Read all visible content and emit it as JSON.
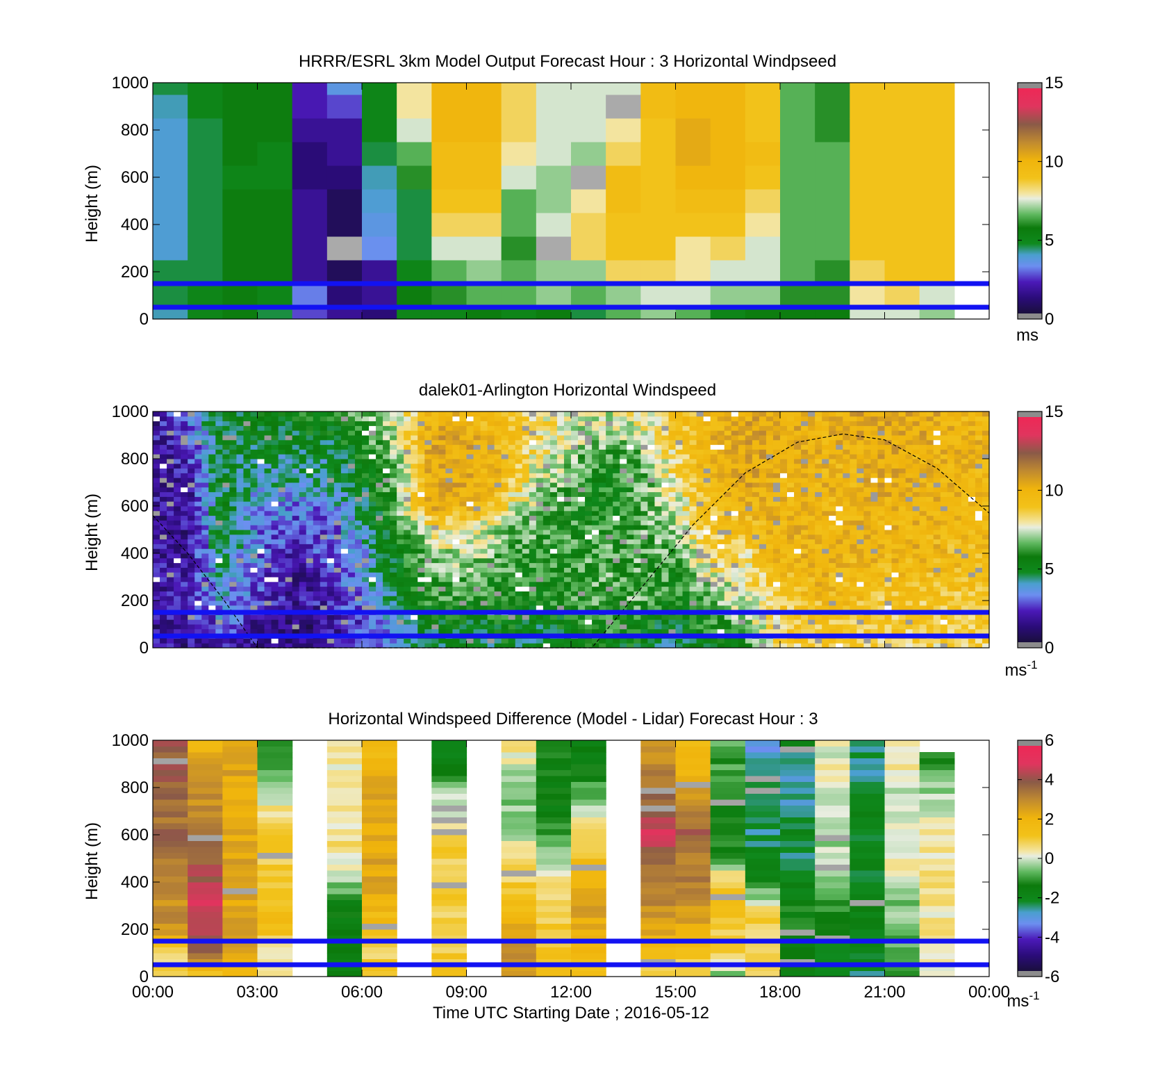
{
  "chart_data": [
    {
      "type": "heatmap",
      "title": "HRRR/ESRL 3km Model Output   Forecast Hour : 3 Horizontal Windpseed",
      "xlabel": "",
      "ylabel": "Height (m)",
      "ylim": [
        0,
        1000
      ],
      "y_ticks": [
        "0",
        "200",
        "400",
        "600",
        "800",
        "1000"
      ],
      "x_range_hours": [
        0,
        24
      ],
      "colorbar": {
        "min": 0,
        "max": 15,
        "ticks": [
          "0",
          "5",
          "10",
          "15"
        ],
        "unit": "ms",
        "unit_sup": ""
      },
      "reference_lines_m": [
        50,
        150
      ],
      "columns_hours": [
        0,
        1,
        2,
        3,
        4,
        5,
        6,
        7,
        8,
        9,
        10,
        11,
        12,
        13,
        14,
        15,
        16,
        17,
        18,
        19,
        20,
        21,
        22
      ],
      "values": [
        [
          4.0,
          5.0,
          5.5,
          4.5,
          2.5,
          1.5,
          1.0,
          5.0,
          5.0,
          5.5,
          5.0,
          5.5,
          4.5,
          6.5,
          7.0,
          6.5,
          5.0,
          5.5,
          5.5,
          5.5,
          7.5,
          7.5,
          7.0
        ],
        [
          4.5,
          5.0,
          5.5,
          5.0,
          3.0,
          1.0,
          1.5,
          5.5,
          6.0,
          6.5,
          6.5,
          7.0,
          6.5,
          7.0,
          7.5,
          7.5,
          7.0,
          7.0,
          6.0,
          6.0,
          8.0,
          8.5,
          7.5
        ],
        [
          4.5,
          4.5,
          5.5,
          5.5,
          1.5,
          0.5,
          1.5,
          5.0,
          6.5,
          7.0,
          6.5,
          7.0,
          7.0,
          8.5,
          8.5,
          8.0,
          7.5,
          7.5,
          6.5,
          6.0,
          8.5,
          9.0,
          9.0
        ],
        [
          3.8,
          4.5,
          5.5,
          5.5,
          1.5,
          0.0,
          3.2,
          4.5,
          7.5,
          7.5,
          6.0,
          0.0,
          8.5,
          9.0,
          9.0,
          8.0,
          8.5,
          7.5,
          6.5,
          6.5,
          9.0,
          9.0,
          9.0
        ],
        [
          3.8,
          4.5,
          5.5,
          5.5,
          1.5,
          0.5,
          3.5,
          4.5,
          8.5,
          8.5,
          6.5,
          7.5,
          8.5,
          9.0,
          9.0,
          9.0,
          9.0,
          8.0,
          6.5,
          6.5,
          9.0,
          9.0,
          9.0
        ],
        [
          3.8,
          4.5,
          5.5,
          5.5,
          1.5,
          0.5,
          3.8,
          4.5,
          9.0,
          9.0,
          6.5,
          7.0,
          8.0,
          9.5,
          9.0,
          9.5,
          9.5,
          8.5,
          6.5,
          6.5,
          9.0,
          9.0,
          9.0
        ],
        [
          3.8,
          4.5,
          5.0,
          5.0,
          1.0,
          1.0,
          4.0,
          6.0,
          9.5,
          9.5,
          7.5,
          7.0,
          0.0,
          9.5,
          9.0,
          10.0,
          10.0,
          9.0,
          6.5,
          6.5,
          9.0,
          9.0,
          9.0
        ],
        [
          3.8,
          4.5,
          5.5,
          5.0,
          1.0,
          1.5,
          4.5,
          6.5,
          9.5,
          9.5,
          8.0,
          7.5,
          7.0,
          8.5,
          9.0,
          10.5,
          10.0,
          9.5,
          6.5,
          6.5,
          9.0,
          9.0,
          9.0
        ],
        [
          3.8,
          4.5,
          5.5,
          5.5,
          1.5,
          1.5,
          5.0,
          7.5,
          10.0,
          10.0,
          8.5,
          7.5,
          7.5,
          8.0,
          9.0,
          10.5,
          10.0,
          9.0,
          6.5,
          6.0,
          9.0,
          9.0,
          9.0
        ],
        [
          4.0,
          5.0,
          5.5,
          5.5,
          2.0,
          2.5,
          5.0,
          8.0,
          10.0,
          10.0,
          8.5,
          7.5,
          7.5,
          0.0,
          9.5,
          10.0,
          10.0,
          9.0,
          6.5,
          6.0,
          9.0,
          9.0,
          9.0
        ],
        [
          4.5,
          5.0,
          5.5,
          5.5,
          2.0,
          3.5,
          5.0,
          8.0,
          10.0,
          10.0,
          8.5,
          7.5,
          7.5,
          7.5,
          9.5,
          10.0,
          10.0,
          9.0,
          6.5,
          6.0,
          9.0,
          9.0,
          9.0
        ]
      ]
    },
    {
      "type": "heatmap",
      "title": "dalek01-Arlington  Horizontal Windspeed",
      "xlabel": "",
      "ylabel": "Height (m)",
      "ylim": [
        0,
        1000
      ],
      "y_ticks": [
        "0",
        "200",
        "400",
        "600",
        "800",
        "1000"
      ],
      "x_range_hours": [
        0,
        24
      ],
      "colorbar": {
        "min": 0,
        "max": 15,
        "ticks": [
          "0",
          "5",
          "10",
          "15"
        ],
        "unit": "ms",
        "unit_sup": "-1"
      },
      "reference_lines_m": [
        50,
        150
      ],
      "boundary_layer_curve": [
        [
          0.0,
          560
        ],
        [
          1.0,
          400
        ],
        [
          2.0,
          210
        ],
        [
          3.0,
          0
        ],
        [
          12.6,
          0
        ],
        [
          14.0,
          250
        ],
        [
          15.5,
          520
        ],
        [
          17.0,
          740
        ],
        [
          18.5,
          870
        ],
        [
          19.8,
          905
        ],
        [
          21.0,
          880
        ],
        [
          22.5,
          760
        ],
        [
          24.0,
          570
        ]
      ],
      "profile_hours": [
        0,
        1,
        2,
        3,
        4,
        5,
        6,
        7,
        8,
        9,
        10,
        11,
        12,
        13,
        14,
        15,
        16,
        17,
        18,
        19,
        20,
        21,
        22,
        23,
        24
      ],
      "profile_heights_m": [
        0,
        100,
        200,
        300,
        400,
        500,
        600,
        700,
        800,
        900,
        1000
      ],
      "values": [
        [
          1.5,
          1.5,
          2.0,
          1.5,
          1.0,
          1.5,
          2.5,
          3.5,
          4.5,
          4.5,
          5.0,
          4.5,
          5.0,
          5.5,
          5.0,
          4.5,
          5.0,
          6.0,
          8.5,
          9.0,
          8.5,
          8.5,
          8.5,
          8.5,
          8.5
        ],
        [
          1.5,
          1.5,
          3.0,
          1.5,
          1.0,
          1.5,
          2.5,
          4.0,
          5.0,
          5.0,
          5.5,
          5.0,
          5.5,
          6.0,
          5.5,
          5.0,
          6.0,
          7.0,
          8.5,
          9.0,
          9.0,
          9.0,
          9.0,
          9.0,
          9.0
        ],
        [
          1.5,
          2.0,
          3.5,
          2.5,
          1.5,
          2.0,
          3.0,
          4.5,
          6.0,
          6.0,
          6.0,
          5.5,
          6.0,
          6.5,
          6.5,
          5.5,
          6.5,
          7.5,
          9.0,
          9.5,
          9.5,
          9.0,
          9.0,
          9.0,
          9.0
        ],
        [
          1.5,
          2.0,
          4.0,
          2.5,
          1.5,
          2.0,
          3.5,
          5.0,
          6.5,
          6.5,
          6.0,
          6.0,
          6.0,
          6.5,
          6.5,
          6.0,
          7.5,
          8.0,
          9.5,
          10.0,
          9.5,
          9.5,
          9.5,
          9.5,
          9.5
        ],
        [
          1.5,
          1.5,
          4.5,
          3.0,
          2.0,
          2.5,
          3.5,
          5.5,
          7.0,
          7.5,
          6.5,
          6.0,
          6.0,
          6.5,
          6.5,
          6.5,
          8.5,
          8.5,
          10.0,
          10.0,
          10.0,
          10.0,
          10.0,
          9.5,
          9.5
        ],
        [
          1.5,
          1.5,
          5.0,
          3.0,
          2.5,
          2.5,
          4.0,
          6.0,
          8.0,
          8.0,
          7.0,
          6.5,
          6.0,
          6.0,
          6.5,
          7.0,
          9.0,
          9.5,
          10.0,
          10.0,
          10.0,
          10.0,
          10.0,
          10.0,
          10.0
        ],
        [
          1.5,
          1.5,
          5.0,
          3.5,
          3.0,
          3.0,
          4.5,
          6.5,
          10.5,
          10.0,
          8.5,
          7.0,
          6.0,
          5.5,
          6.5,
          7.5,
          9.5,
          10.0,
          10.0,
          10.0,
          10.0,
          10.0,
          10.0,
          10.0,
          10.0
        ],
        [
          1.5,
          1.5,
          5.0,
          4.0,
          4.0,
          4.0,
          5.0,
          6.5,
          10.5,
          10.5,
          9.5,
          7.5,
          6.5,
          5.5,
          6.5,
          8.0,
          10.0,
          10.5,
          10.0,
          10.0,
          10.0,
          10.5,
          10.0,
          10.0,
          10.0
        ],
        [
          1.5,
          2.0,
          5.0,
          4.5,
          4.5,
          4.5,
          5.5,
          7.0,
          10.5,
          10.5,
          10.0,
          8.0,
          7.0,
          6.0,
          6.5,
          8.5,
          10.0,
          10.5,
          10.5,
          10.0,
          10.0,
          10.5,
          10.0,
          10.0,
          10.0
        ],
        [
          1.5,
          2.5,
          5.0,
          5.0,
          5.0,
          5.0,
          6.0,
          7.5,
          10.5,
          10.5,
          9.5,
          8.5,
          7.5,
          7.0,
          7.5,
          9.0,
          10.0,
          10.5,
          10.5,
          10.0,
          10.5,
          10.5,
          10.5,
          10.0,
          10.0
        ],
        [
          1.5,
          3.0,
          5.0,
          5.0,
          5.5,
          5.5,
          6.5,
          7.5,
          10.0,
          10.0,
          9.0,
          8.5,
          7.5,
          7.5,
          8.0,
          9.0,
          10.0,
          10.5,
          10.5,
          10.0,
          10.5,
          10.5,
          10.5,
          10.0,
          10.0
        ]
      ]
    },
    {
      "type": "heatmap",
      "title": "Horizontal Windspeed Difference (Model - Lidar) Forecast Hour : 3",
      "xlabel": "Time UTC  Starting Date ; 2016-05-12",
      "ylabel": "Height (m)",
      "ylim": [
        0,
        1000
      ],
      "y_ticks": [
        "0",
        "200",
        "400",
        "600",
        "800",
        "1000"
      ],
      "x_ticks": [
        "00:00",
        "03:00",
        "06:00",
        "09:00",
        "12:00",
        "15:00",
        "18:00",
        "21:00",
        "00:00"
      ],
      "x_range_hours": [
        0,
        24
      ],
      "colorbar": {
        "min": -6,
        "max": 6,
        "ticks": [
          "-6",
          "-4",
          "-2",
          "0",
          "2",
          "4",
          "6"
        ],
        "unit": "ms",
        "unit_sup": "-1"
      },
      "reference_lines_m": [
        50,
        150
      ],
      "columns": [
        {
          "hour": 0,
          "top_m": 1000,
          "profile": [
            0.5,
            1.0,
            3.0,
            3.0,
            3.5,
            3.5,
            4.0,
            3.5,
            4.0,
            4.0,
            4.0
          ]
        },
        {
          "hour": 1,
          "top_m": 1000,
          "profile": [
            1.0,
            4.0,
            5.0,
            5.0,
            4.5,
            4.0,
            3.5,
            3.0,
            3.0,
            2.5,
            2.0
          ]
        },
        {
          "hour": 2,
          "top_m": 1000,
          "profile": [
            1.5,
            2.5,
            2.5,
            2.5,
            2.5,
            2.5,
            2.5,
            2.5,
            2.5,
            2.5,
            2.5
          ]
        },
        {
          "hour": 3,
          "top_m": 1000,
          "profile": [
            0.3,
            0.3,
            1.5,
            1.5,
            1.0,
            1.0,
            1.0,
            0.5,
            -0.5,
            -1.0,
            -1.0
          ]
        },
        {
          "hour": 5,
          "top_m": 1000,
          "profile": [
            -1.5,
            -1.5,
            -1.5,
            -1.5,
            -0.5,
            0.5,
            0.5,
            0.3,
            0.2,
            0.3,
            0.5
          ]
        },
        {
          "hour": 6,
          "top_m": 1000,
          "profile": [
            1.0,
            1.0,
            1.5,
            2.0,
            2.5,
            2.5,
            2.5,
            2.5,
            2.5,
            2.0,
            1.5
          ]
        },
        {
          "hour": 8,
          "top_m": 1000,
          "profile": [
            1.5,
            1.0,
            1.0,
            0.8,
            1.0,
            1.0,
            0.8,
            0.2,
            -0.5,
            -1.5,
            -2.0
          ]
        },
        {
          "hour": 10,
          "top_m": 1000,
          "profile": [
            3.0,
            3.0,
            2.5,
            1.5,
            1.0,
            0.5,
            0.0,
            -0.5,
            -0.5,
            0.2,
            0.5
          ]
        },
        {
          "hour": 11,
          "top_m": 1000,
          "profile": [
            1.5,
            1.5,
            1.0,
            1.0,
            0.5,
            -0.5,
            -1.0,
            -1.5,
            -1.5,
            -1.5,
            -1.5
          ]
        },
        {
          "hour": 12,
          "top_m": 1000,
          "profile": [
            1.5,
            2.0,
            2.5,
            2.5,
            2.0,
            1.5,
            1.0,
            0.0,
            -1.0,
            -1.5,
            -1.5
          ]
        },
        {
          "hour": 14,
          "top_m": 1000,
          "profile": [
            0.5,
            1.5,
            2.5,
            3.0,
            3.5,
            4.0,
            5.0,
            4.0,
            3.5,
            3.0,
            2.5
          ]
        },
        {
          "hour": 15,
          "top_m": 1000,
          "profile": [
            0.5,
            1.5,
            2.5,
            3.0,
            3.5,
            3.5,
            4.0,
            3.5,
            2.5,
            2.0,
            1.5
          ]
        },
        {
          "hour": 16,
          "top_m": 1000,
          "profile": [
            -0.5,
            1.0,
            1.0,
            1.5,
            1.0,
            -1.0,
            -1.5,
            -1.5,
            -1.0,
            -1.0,
            -0.5
          ]
        },
        {
          "hour": 17,
          "top_m": 1000,
          "profile": [
            1.0,
            0.5,
            1.0,
            0.5,
            -1.5,
            -2.0,
            -2.5,
            -2.5,
            -2.0,
            -2.5,
            -3.5
          ]
        },
        {
          "hour": 18,
          "top_m": 1000,
          "profile": [
            -1.5,
            -1.5,
            -1.5,
            -1.5,
            -2.0,
            -2.5,
            -2.0,
            -2.5,
            -3.0,
            -2.5,
            -2.0
          ]
        },
        {
          "hour": 19,
          "top_m": 1000,
          "profile": [
            -2.0,
            -2.0,
            -1.5,
            -1.0,
            -0.5,
            0.0,
            -0.5,
            0.0,
            0.3,
            0.2,
            0.0
          ]
        },
        {
          "hour": 20,
          "top_m": 1000,
          "profile": [
            -2.5,
            -2.0,
            -2.0,
            -2.0,
            -2.0,
            -2.0,
            -2.0,
            -2.0,
            -2.5,
            -2.5,
            -2.5
          ]
        },
        {
          "hour": 21,
          "top_m": 1000,
          "profile": [
            -1.0,
            -1.0,
            -0.5,
            -0.5,
            0.0,
            0.3,
            0.0,
            0.2,
            -0.2,
            0.3,
            0.3
          ]
        },
        {
          "hour": 22,
          "top_m": 960,
          "profile": [
            0.0,
            0.3,
            0.5,
            0.5,
            0.8,
            0.5,
            0.3,
            0.0,
            -0.5,
            -1.0,
            -1.5
          ]
        }
      ]
    }
  ]
}
